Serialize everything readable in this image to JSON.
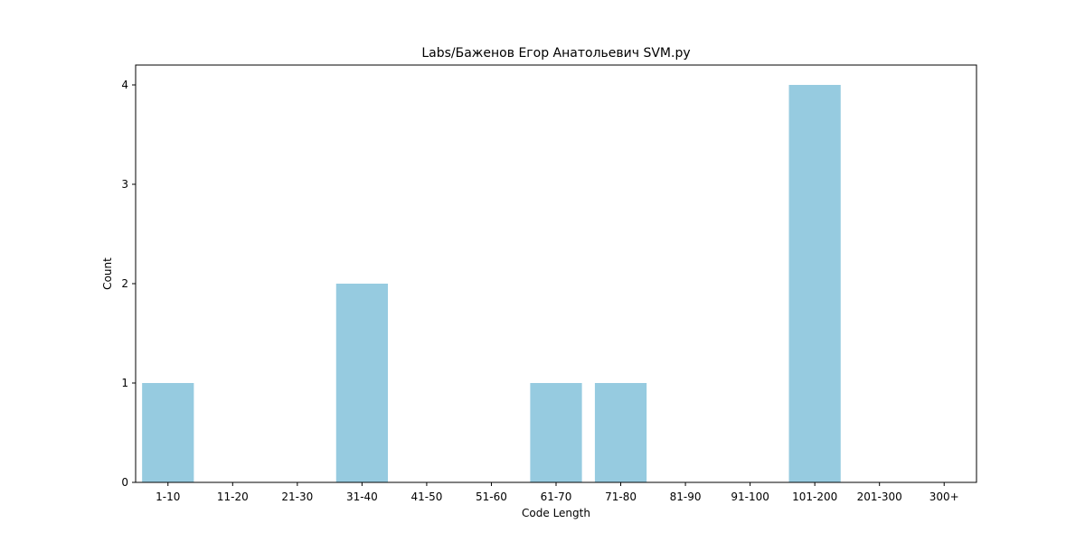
{
  "chart_data": {
    "type": "bar",
    "title": "Labs/Баженов Егор Анатольевич SVM.py",
    "xlabel": "Code Length",
    "ylabel": "Count",
    "categories": [
      "1-10",
      "11-20",
      "21-30",
      "31-40",
      "41-50",
      "51-60",
      "61-70",
      "71-80",
      "81-90",
      "91-100",
      "101-200",
      "201-300",
      "300+"
    ],
    "values": [
      1,
      0,
      0,
      2,
      0,
      0,
      1,
      1,
      0,
      0,
      4,
      0,
      0
    ],
    "y_ticks": [
      "0",
      "1",
      "2",
      "3",
      "4"
    ],
    "ylim": [
      0,
      4.2
    ],
    "grid": false,
    "bar_color": "#96cbe0"
  }
}
